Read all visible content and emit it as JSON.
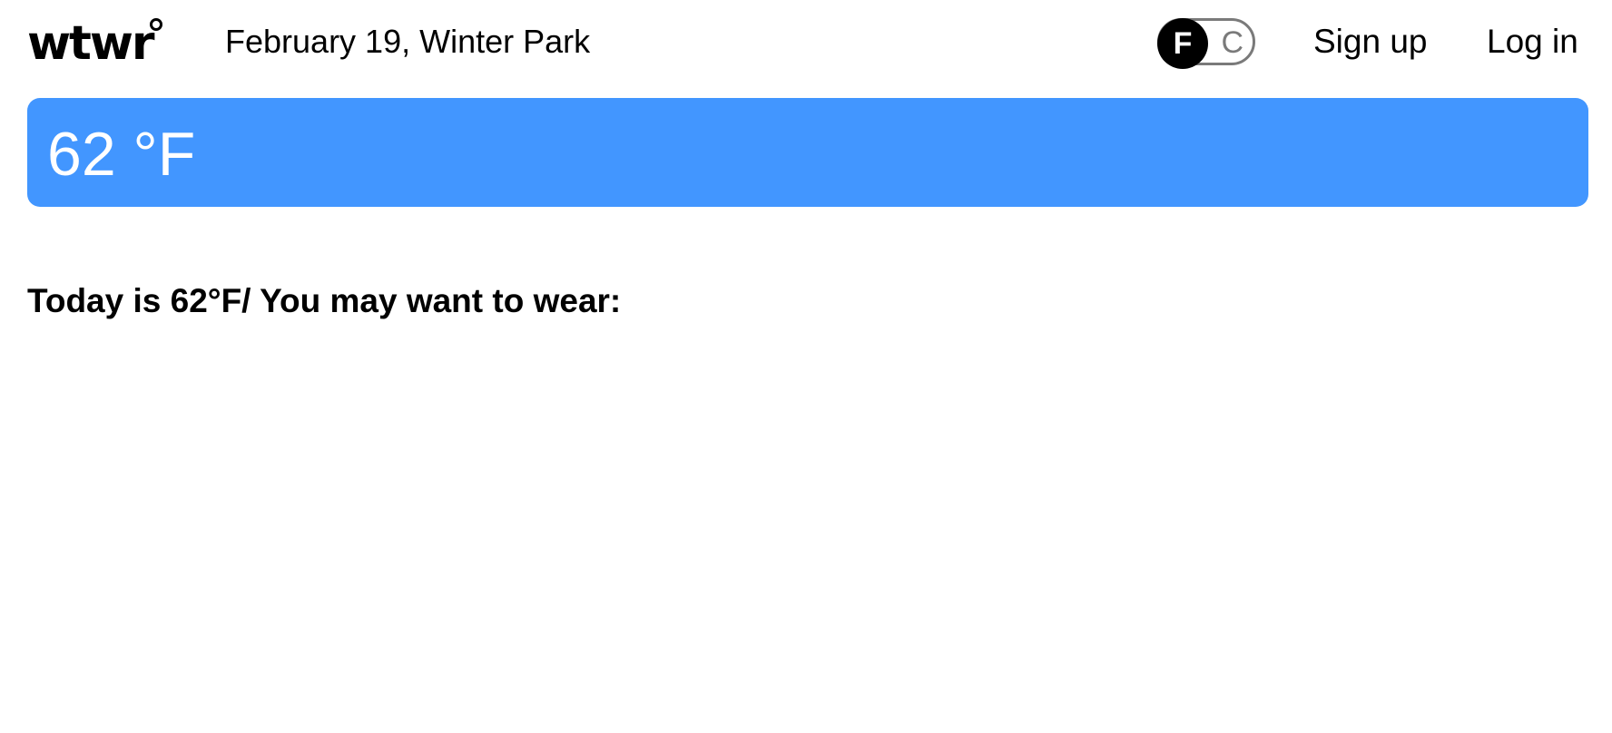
{
  "header": {
    "logo_text": "wtwr",
    "date_location": "February 19, Winter Park",
    "unit_toggle": {
      "selected": "F",
      "other": "C"
    },
    "signup_label": "Sign up",
    "login_label": "Log in"
  },
  "weather": {
    "temperature_display": "62 °F",
    "banner_color": "#4296ff"
  },
  "main": {
    "wear_heading": "Today is 62°F/ You may want to wear:"
  }
}
